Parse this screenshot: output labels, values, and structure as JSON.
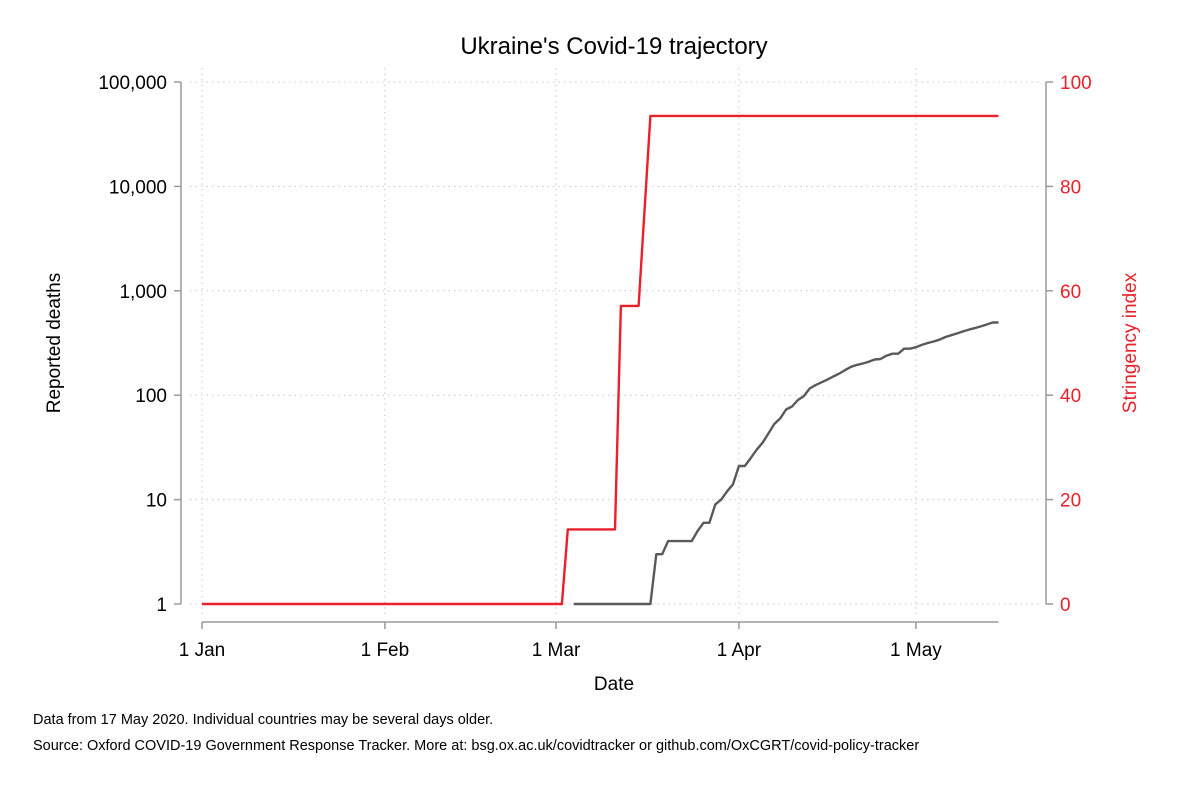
{
  "chart_data": {
    "type": "line",
    "title": "Ukraine's Covid-19 trajectory",
    "xlabel": "Date",
    "ylabel_left": "Reported deaths",
    "ylabel_right": "Stringency index",
    "y_left_scale": "log",
    "y_left_lim": [
      1,
      100000
    ],
    "y_left_ticks": [
      "1",
      "10",
      "100",
      "1,000",
      "10,000",
      "100,000"
    ],
    "y_right_lim": [
      0,
      100
    ],
    "y_right_ticks": [
      "0",
      "20",
      "40",
      "60",
      "80",
      "100"
    ],
    "x_ticks": [
      "1 Jan",
      "1 Feb",
      "1 Mar",
      "1 Apr",
      "1 May"
    ],
    "x_tick_dates": [
      "2020-01-01",
      "2020-02-01",
      "2020-03-01",
      "2020-04-01",
      "2020-05-01"
    ],
    "x_range": [
      "2020-01-01",
      "2020-05-15"
    ],
    "grid": true,
    "colors": {
      "deaths": "#5a5a5a",
      "stringency": "#e8212a"
    },
    "series": [
      {
        "axis": "right",
        "points": [
          [
            "2020-01-01",
            0
          ],
          [
            "2020-03-02",
            0
          ],
          [
            "2020-03-03",
            14.3
          ],
          [
            "2020-03-11",
            14.3
          ],
          [
            "2020-03-12",
            57.1
          ],
          [
            "2020-03-15",
            57.1
          ],
          [
            "2020-03-17",
            93.5
          ],
          [
            "2020-05-15",
            93.5
          ]
        ]
      },
      {
        "axis": "left",
        "points": [
          [
            "2020-03-04",
            1
          ],
          [
            "2020-03-17",
            1
          ],
          [
            "2020-03-18",
            3
          ],
          [
            "2020-03-19",
            3
          ],
          [
            "2020-03-20",
            4
          ],
          [
            "2020-03-24",
            4
          ],
          [
            "2020-03-25",
            5
          ],
          [
            "2020-03-26",
            6
          ],
          [
            "2020-03-27",
            6
          ],
          [
            "2020-03-28",
            9
          ],
          [
            "2020-03-29",
            10
          ],
          [
            "2020-03-30",
            12
          ],
          [
            "2020-03-31",
            14
          ],
          [
            "2020-04-01",
            21
          ],
          [
            "2020-04-02",
            21
          ],
          [
            "2020-04-03",
            25
          ],
          [
            "2020-04-04",
            30
          ],
          [
            "2020-04-05",
            35
          ],
          [
            "2020-04-06",
            43
          ],
          [
            "2020-04-07",
            53
          ],
          [
            "2020-04-08",
            60
          ],
          [
            "2020-04-09",
            73
          ],
          [
            "2020-04-10",
            78
          ],
          [
            "2020-04-11",
            90
          ],
          [
            "2020-04-12",
            98
          ],
          [
            "2020-04-13",
            116
          ],
          [
            "2020-04-14",
            125
          ],
          [
            "2020-04-15",
            133
          ],
          [
            "2020-04-16",
            141
          ],
          [
            "2020-04-17",
            151
          ],
          [
            "2020-04-18",
            161
          ],
          [
            "2020-04-19",
            174
          ],
          [
            "2020-04-20",
            187
          ],
          [
            "2020-04-21",
            195
          ],
          [
            "2020-04-22",
            201
          ],
          [
            "2020-04-23",
            209
          ],
          [
            "2020-04-24",
            220
          ],
          [
            "2020-04-25",
            222
          ],
          [
            "2020-04-26",
            239
          ],
          [
            "2020-04-27",
            250
          ],
          [
            "2020-04-28",
            250
          ],
          [
            "2020-04-29",
            279
          ],
          [
            "2020-04-30",
            279
          ],
          [
            "2020-05-01",
            288
          ],
          [
            "2020-05-02",
            303
          ],
          [
            "2020-05-03",
            316
          ],
          [
            "2020-05-04",
            327
          ],
          [
            "2020-05-05",
            340
          ],
          [
            "2020-05-06",
            361
          ],
          [
            "2020-05-07",
            376
          ],
          [
            "2020-05-08",
            391
          ],
          [
            "2020-05-09",
            408
          ],
          [
            "2020-05-10",
            425
          ],
          [
            "2020-05-11",
            439
          ],
          [
            "2020-05-12",
            456
          ],
          [
            "2020-05-13",
            476
          ],
          [
            "2020-05-14",
            497
          ],
          [
            "2020-05-15",
            497
          ]
        ]
      }
    ]
  },
  "notes": {
    "line1": "Data from 17 May 2020. Individual countries may be several days older.",
    "line2": "Source: Oxford COVID-19 Government Response Tracker. More at: bsg.ox.ac.uk/covidtracker or github.com/OxCGRT/covid-policy-tracker"
  }
}
